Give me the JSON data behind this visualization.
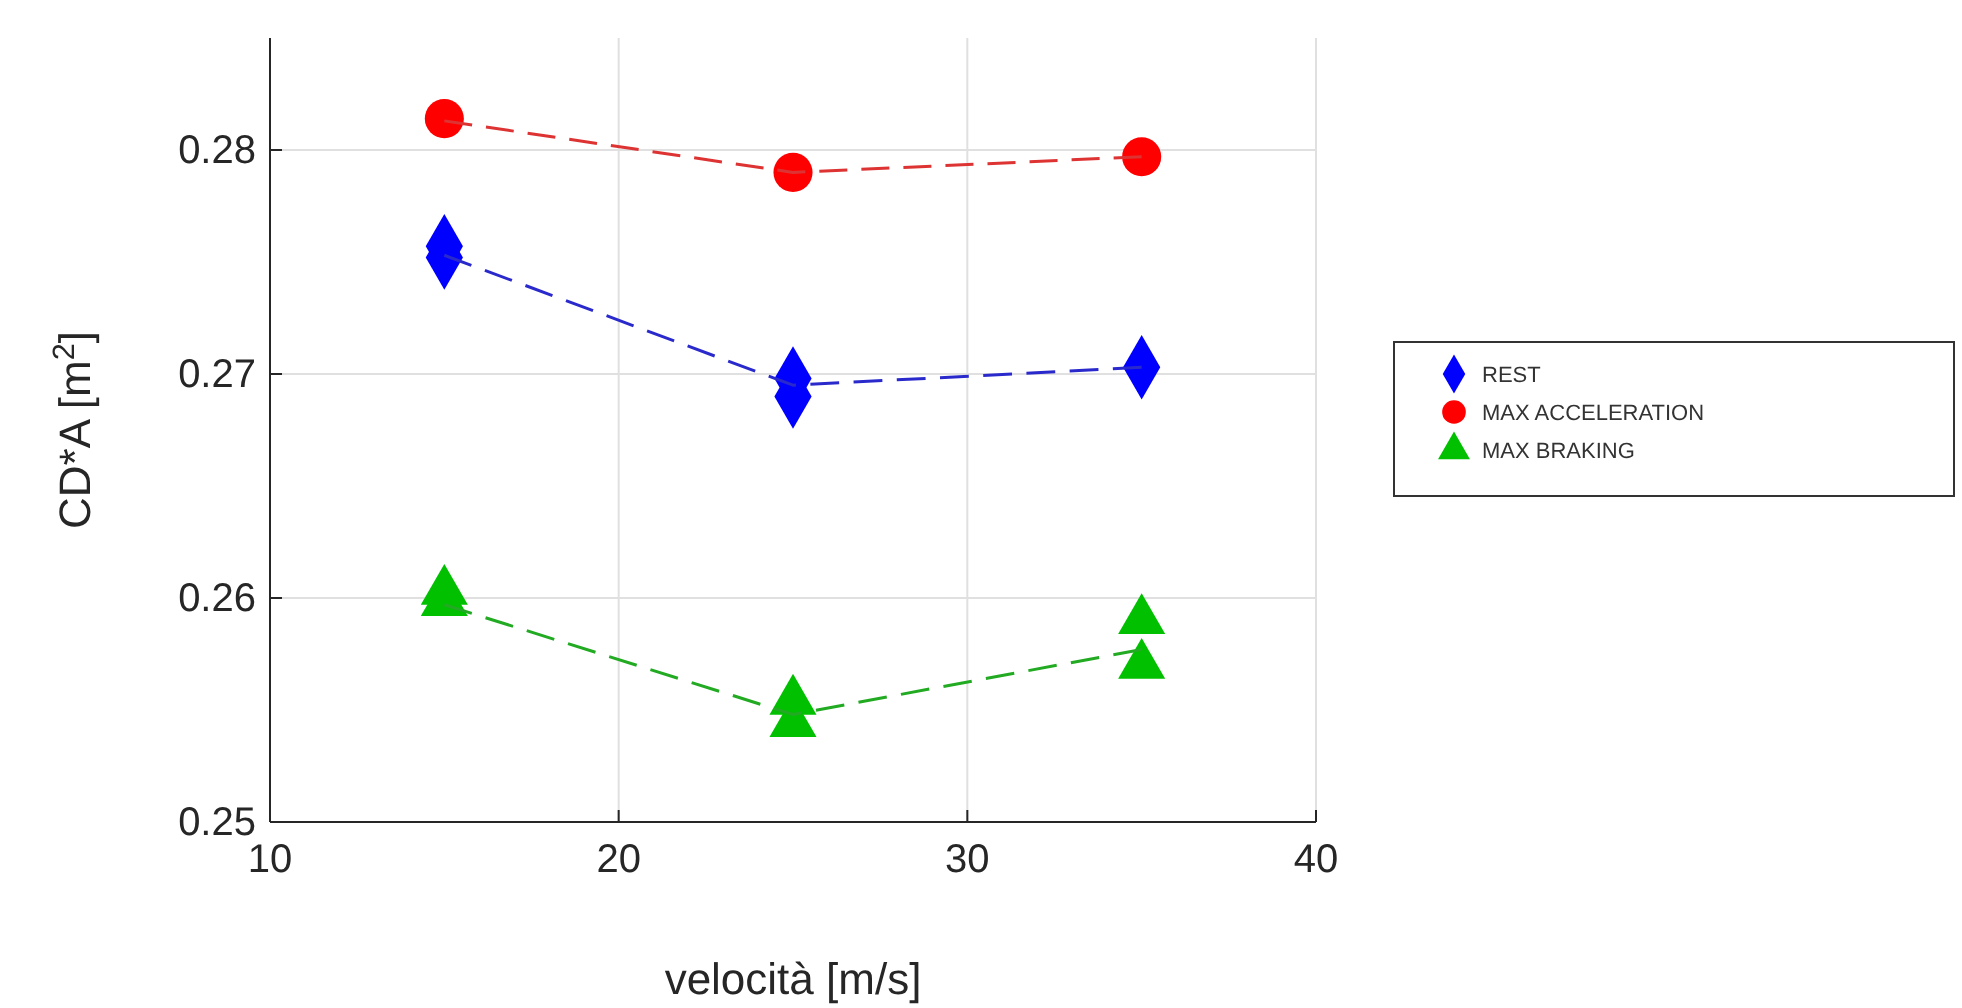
{
  "chart_data": {
    "type": "scatter",
    "xlabel": "velocità [m/s]",
    "ylabel": "CD*A [m$^{2}$]",
    "xlim": [
      10,
      40
    ],
    "ylim": [
      0.25,
      0.285
    ],
    "xticks": [
      10,
      20,
      30,
      40
    ],
    "yticks": [
      0.25,
      0.26,
      0.27,
      0.28
    ],
    "grid": true,
    "legend": "right",
    "series": [
      {
        "name": "REST",
        "marker": "diamond",
        "color": "#0000ff",
        "x": [
          15,
          15,
          25,
          25,
          35
        ],
        "values": [
          0.2757,
          0.2752,
          0.2698,
          0.269,
          0.2703
        ]
      },
      {
        "name": "MAX ACCELERATION",
        "marker": "circle",
        "color": "#ff0000",
        "x": [
          15,
          25,
          35
        ],
        "values": [
          0.2814,
          0.279,
          0.2797
        ]
      },
      {
        "name": "MAX BRAKING",
        "marker": "triangle",
        "color": "#00c000",
        "x": [
          15,
          15,
          25,
          25,
          35,
          35
        ],
        "values": [
          0.2603,
          0.2598,
          0.2554,
          0.2544,
          0.259,
          0.257
        ]
      },
      {
        "type": "line",
        "line_style": "dashed",
        "color": "#2a2acc",
        "x": [
          15,
          25,
          35
        ],
        "values": [
          0.2753,
          0.2695,
          0.2703
        ]
      },
      {
        "type": "line",
        "line_style": "dashed",
        "color": "#dd3333",
        "x": [
          15,
          25,
          35
        ],
        "values": [
          0.2813,
          0.279,
          0.2797
        ]
      },
      {
        "type": "line",
        "line_style": "dashed",
        "color": "#22aa22",
        "x": [
          15,
          25,
          35
        ],
        "values": [
          0.2597,
          0.2548,
          0.2577
        ]
      }
    ]
  }
}
